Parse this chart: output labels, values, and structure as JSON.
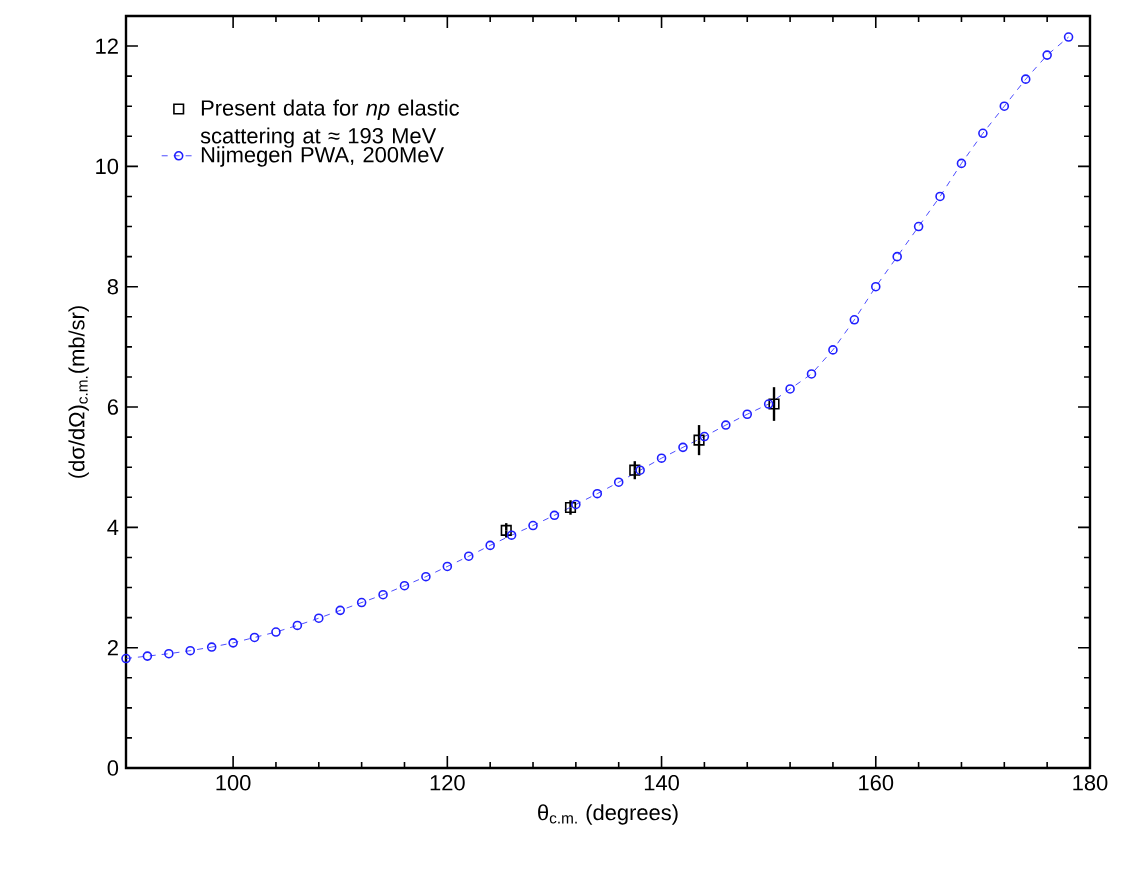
{
  "chart_data": {
    "type": "line",
    "xlabel": "θ$_{c.m.}$ (degrees)",
    "ylabel": "(dσ/dΩ)$_{c.m.}$(mb/sr)",
    "xlim": [
      90,
      180
    ],
    "ylim": [
      0,
      12.5
    ],
    "xticks": [
      100,
      120,
      140,
      160,
      180
    ],
    "yticks": [
      0,
      2,
      4,
      6,
      8,
      10,
      12
    ],
    "legend": "top left",
    "grid": false,
    "series": [
      {
        "name": "Present data for *np* elastic scattering at ≈ 193 MeV",
        "type": "scatter",
        "marker": "square",
        "color": "#000000",
        "x": [
          125.5,
          131.5,
          137.5,
          143.5,
          150.5
        ],
        "values": [
          3.95,
          4.33,
          4.95,
          5.45,
          6.05
        ],
        "errors": [
          0.12,
          0.12,
          0.15,
          0.25,
          0.28
        ]
      },
      {
        "name": "Nijmegen PWA, 200MeV",
        "marker": "circle",
        "line_style": "dashed",
        "color": "#1f1fff",
        "x": [
          90,
          92,
          94,
          96,
          98,
          100,
          102,
          104,
          106,
          108,
          110,
          112,
          114,
          116,
          118,
          120,
          122,
          124,
          126,
          128,
          130,
          132,
          134,
          136,
          138,
          140,
          142,
          144,
          146,
          148,
          150,
          152,
          154,
          156,
          158,
          160,
          162,
          164,
          166,
          168,
          170,
          172,
          174,
          176,
          178
        ],
        "values": [
          1.82,
          1.86,
          1.9,
          1.95,
          2.01,
          2.08,
          2.17,
          2.26,
          2.37,
          2.49,
          2.62,
          2.75,
          2.88,
          3.03,
          3.18,
          3.35,
          3.52,
          3.7,
          3.87,
          4.03,
          4.2,
          4.38,
          4.56,
          4.75,
          4.95,
          5.15,
          5.33,
          5.51,
          5.7,
          5.88,
          6.05,
          6.3,
          6.55,
          6.95,
          7.45,
          8.0,
          8.5,
          9.0,
          9.5,
          10.05,
          10.55,
          11.0,
          11.45,
          11.85,
          12.15
        ]
      }
    ]
  }
}
